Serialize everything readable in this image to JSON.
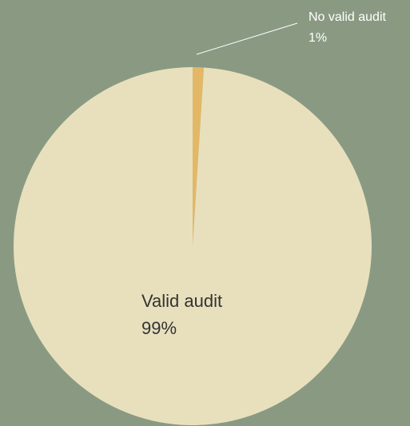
{
  "chart_data": {
    "type": "pie",
    "categories": [
      "No valid audit",
      "Valid audit"
    ],
    "values": [
      1,
      99
    ],
    "value_labels": [
      "1%",
      "99%"
    ],
    "colors": [
      "#e2b866",
      "#e8e0bd"
    ]
  }
}
